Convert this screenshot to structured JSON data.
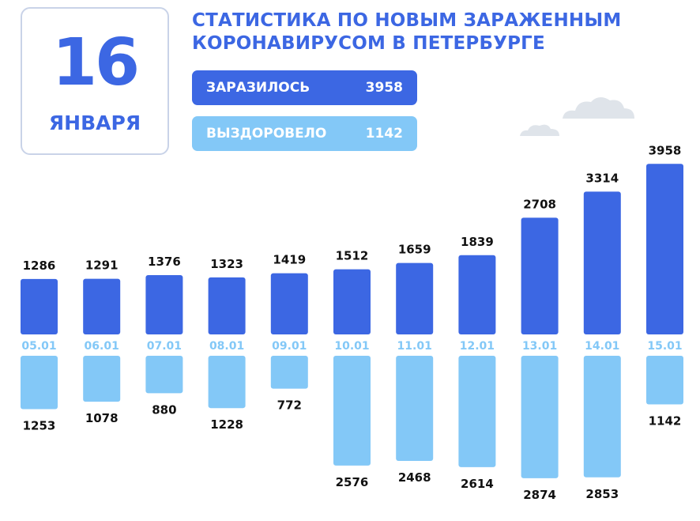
{
  "header": {
    "day": "16",
    "month": "ЯНВАРЯ",
    "title_line1": "СТАТИСТИКА ПО НОВЫМ ЗАРАЖЕННЫМ",
    "title_line2": "КОРОНАВИРУСОМ В ПЕТЕРБУРГЕ"
  },
  "legend": {
    "infected_label": "ЗАРАЗИЛОСЬ",
    "infected_value": "3958",
    "recovered_label": "ВЫЗДОРОВЕЛО",
    "recovered_value": "1142"
  },
  "colors": {
    "infected": "#3c67e3",
    "recovered": "#83c8f7",
    "cloud": "#dfe4ea"
  },
  "icons": [
    "cloud-icon"
  ],
  "chart_data": {
    "type": "bar",
    "categories": [
      "05.01",
      "06.01",
      "07.01",
      "08.01",
      "09.01",
      "10.01",
      "11.01",
      "12.01",
      "13.01",
      "14.01",
      "15.01"
    ],
    "series": [
      {
        "name": "ЗАРАЗИЛОСЬ",
        "values": [
          1286,
          1291,
          1376,
          1323,
          1419,
          1512,
          1659,
          1839,
          2708,
          3314,
          3958
        ]
      },
      {
        "name": "ВЫЗДОРОВЕЛО",
        "values": [
          1253,
          1078,
          880,
          1228,
          772,
          2576,
          2468,
          2614,
          2874,
          2853,
          1142
        ]
      }
    ],
    "grid": false,
    "legend": "top-right"
  }
}
